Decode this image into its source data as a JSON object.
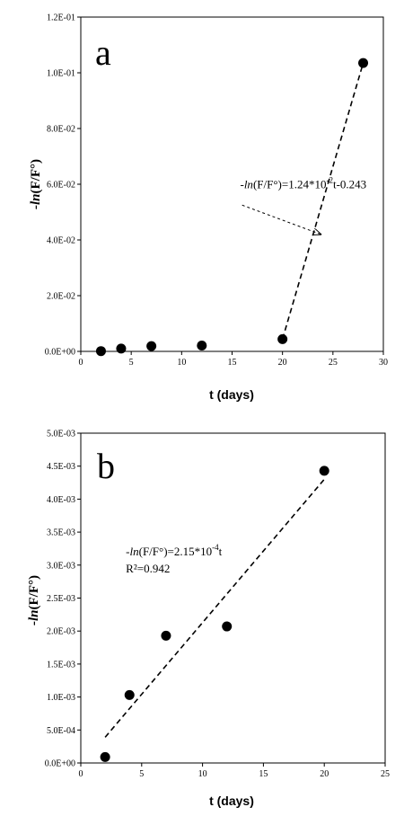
{
  "chart_data": [
    {
      "type": "scatter",
      "panel_label": "a",
      "xlabel": "t (days)",
      "ylabel_italic": "-ln",
      "ylabel_rest": "(F/F°)",
      "xlim": [
        0,
        30
      ],
      "ylim": [
        0,
        0.12
      ],
      "x_ticks": [
        0,
        5,
        10,
        15,
        20,
        25,
        30
      ],
      "x_tick_labels": [
        "0",
        "5",
        "10",
        "15",
        "20",
        "25",
        "30"
      ],
      "y_ticks": [
        0,
        0.02,
        0.04,
        0.06,
        0.08,
        0.1,
        0.12
      ],
      "y_tick_labels": [
        "0.0E+00",
        "2.0E-02",
        "4.0E-02",
        "6.0E-02",
        "8.0E-02",
        "1.0E-01",
        "1.2E-01"
      ],
      "points": [
        {
          "x": 2,
          "y": 0.0001
        },
        {
          "x": 4,
          "y": 0.001
        },
        {
          "x": 7,
          "y": 0.0019
        },
        {
          "x": 12,
          "y": 0.0021
        },
        {
          "x": 20,
          "y": 0.0044
        },
        {
          "x": 28,
          "y": 0.1035
        }
      ],
      "fit_line": {
        "x": [
          20,
          28
        ],
        "y": [
          0.0044,
          0.1035
        ],
        "style": "dashed"
      },
      "annotation": {
        "italic": "-ln",
        "rest_before_sup": "(F/F°)=1.24*10",
        "sup": "-2",
        "rest_after_sup": "t-0.243",
        "x": 15.8,
        "y": 0.0585
      },
      "arrow": {
        "from": {
          "x": 16,
          "y": 0.0525
        },
        "to": {
          "x": 23.8,
          "y": 0.042
        }
      },
      "grid": false
    },
    {
      "type": "scatter",
      "panel_label": "b",
      "xlabel": "t (days)",
      "ylabel_italic": "-ln",
      "ylabel_rest": "(F/F°)",
      "xlim": [
        0,
        25
      ],
      "ylim": [
        0,
        0.005
      ],
      "x_ticks": [
        0,
        5,
        10,
        15,
        20,
        25
      ],
      "x_tick_labels": [
        "0",
        "5",
        "10",
        "15",
        "20",
        "25"
      ],
      "y_ticks": [
        0,
        0.0005,
        0.001,
        0.0015,
        0.002,
        0.0025,
        0.003,
        0.0035,
        0.004,
        0.0045,
        0.005
      ],
      "y_tick_labels": [
        "0.0E+00",
        "5.0E-04",
        "1.0E-03",
        "1.5E-03",
        "2.0E-03",
        "2.5E-03",
        "3.0E-03",
        "3.5E-03",
        "4.0E-03",
        "4.5E-03",
        "5.0E-03"
      ],
      "points": [
        {
          "x": 2,
          "y": 9e-05
        },
        {
          "x": 4,
          "y": 0.00103
        },
        {
          "x": 7,
          "y": 0.00193
        },
        {
          "x": 12,
          "y": 0.00207
        },
        {
          "x": 20,
          "y": 0.00443
        }
      ],
      "fit_line": {
        "x": [
          2,
          20
        ],
        "y": [
          0.00039,
          0.0043
        ],
        "style": "dashed"
      },
      "annotation": {
        "italic": "-ln",
        "rest_before_sup": "(F/F°)=2.15*10",
        "sup": "-4",
        "rest_after_sup": "t",
        "line2": "R²=0.942",
        "x": 3.7,
        "y": 0.00315
      },
      "grid": false
    }
  ]
}
